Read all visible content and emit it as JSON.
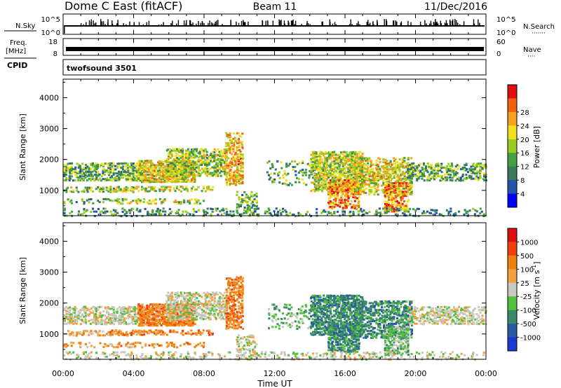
{
  "header": {
    "station": "Dome C East (fitACF)",
    "beam": "Beam 11",
    "date": "11/Dec/2016"
  },
  "top_panels": {
    "nsky_label": "N.Sky",
    "nsearch_label": "N.Search",
    "nsearch_dots": "·······",
    "nsky_axis": [
      "10^5",
      "10^0"
    ],
    "nsearch_axis": [
      "10^5",
      "10^0"
    ],
    "freq_label_1": "Freq.",
    "freq_label_2": "[MHz]",
    "freq_axis": [
      "18",
      "8"
    ],
    "nave_label": "Nave",
    "nave_dots": "····",
    "nave_axis": [
      "60",
      "0"
    ],
    "cpid_label": "CPID",
    "cpid_value": "twofsound 3501"
  },
  "time_axis": {
    "label": "Time UT",
    "ticks": [
      "00:00",
      "04:00",
      "08:00",
      "12:00",
      "16:00",
      "20:00",
      "00:00"
    ]
  },
  "chart_data": [
    {
      "type": "heatmap",
      "name": "power-panel",
      "ylabel": "Slant Range [km]",
      "yticks": [
        1000,
        2000,
        3000,
        4000
      ],
      "ylim": [
        180,
        4600
      ],
      "xlim_hours": [
        0,
        24
      ],
      "colorbar": {
        "label": "Power [dB]",
        "ticks": [
          "4",
          "8",
          "12",
          "16",
          "20",
          "24",
          "28"
        ],
        "colors": [
          "#0000ff",
          "#2255aa",
          "#3a7a5a",
          "#44a044",
          "#9acc20",
          "#f2e020",
          "#f5a020",
          "#f06010",
          "#e01010"
        ]
      }
    },
    {
      "type": "heatmap",
      "name": "velocity-panel",
      "ylabel": "Slant Range [km]",
      "yticks": [
        1000,
        2000,
        3000,
        4000
      ],
      "ylim": [
        180,
        4600
      ],
      "xlim_hours": [
        0,
        24
      ],
      "colorbar": {
        "label": "Velocity [m s",
        "label_sup": "-1",
        "label_end": "]",
        "ticks": [
          "1000",
          "500",
          "100",
          "25",
          "-25",
          "-100",
          "-500",
          "-1000"
        ],
        "colors": [
          "#1a3ad0",
          "#2a5aa0",
          "#3a8a6a",
          "#55c040",
          "#c8c8c0",
          "#f5a040",
          "#f08010",
          "#f04010",
          "#e01010"
        ]
      }
    }
  ]
}
